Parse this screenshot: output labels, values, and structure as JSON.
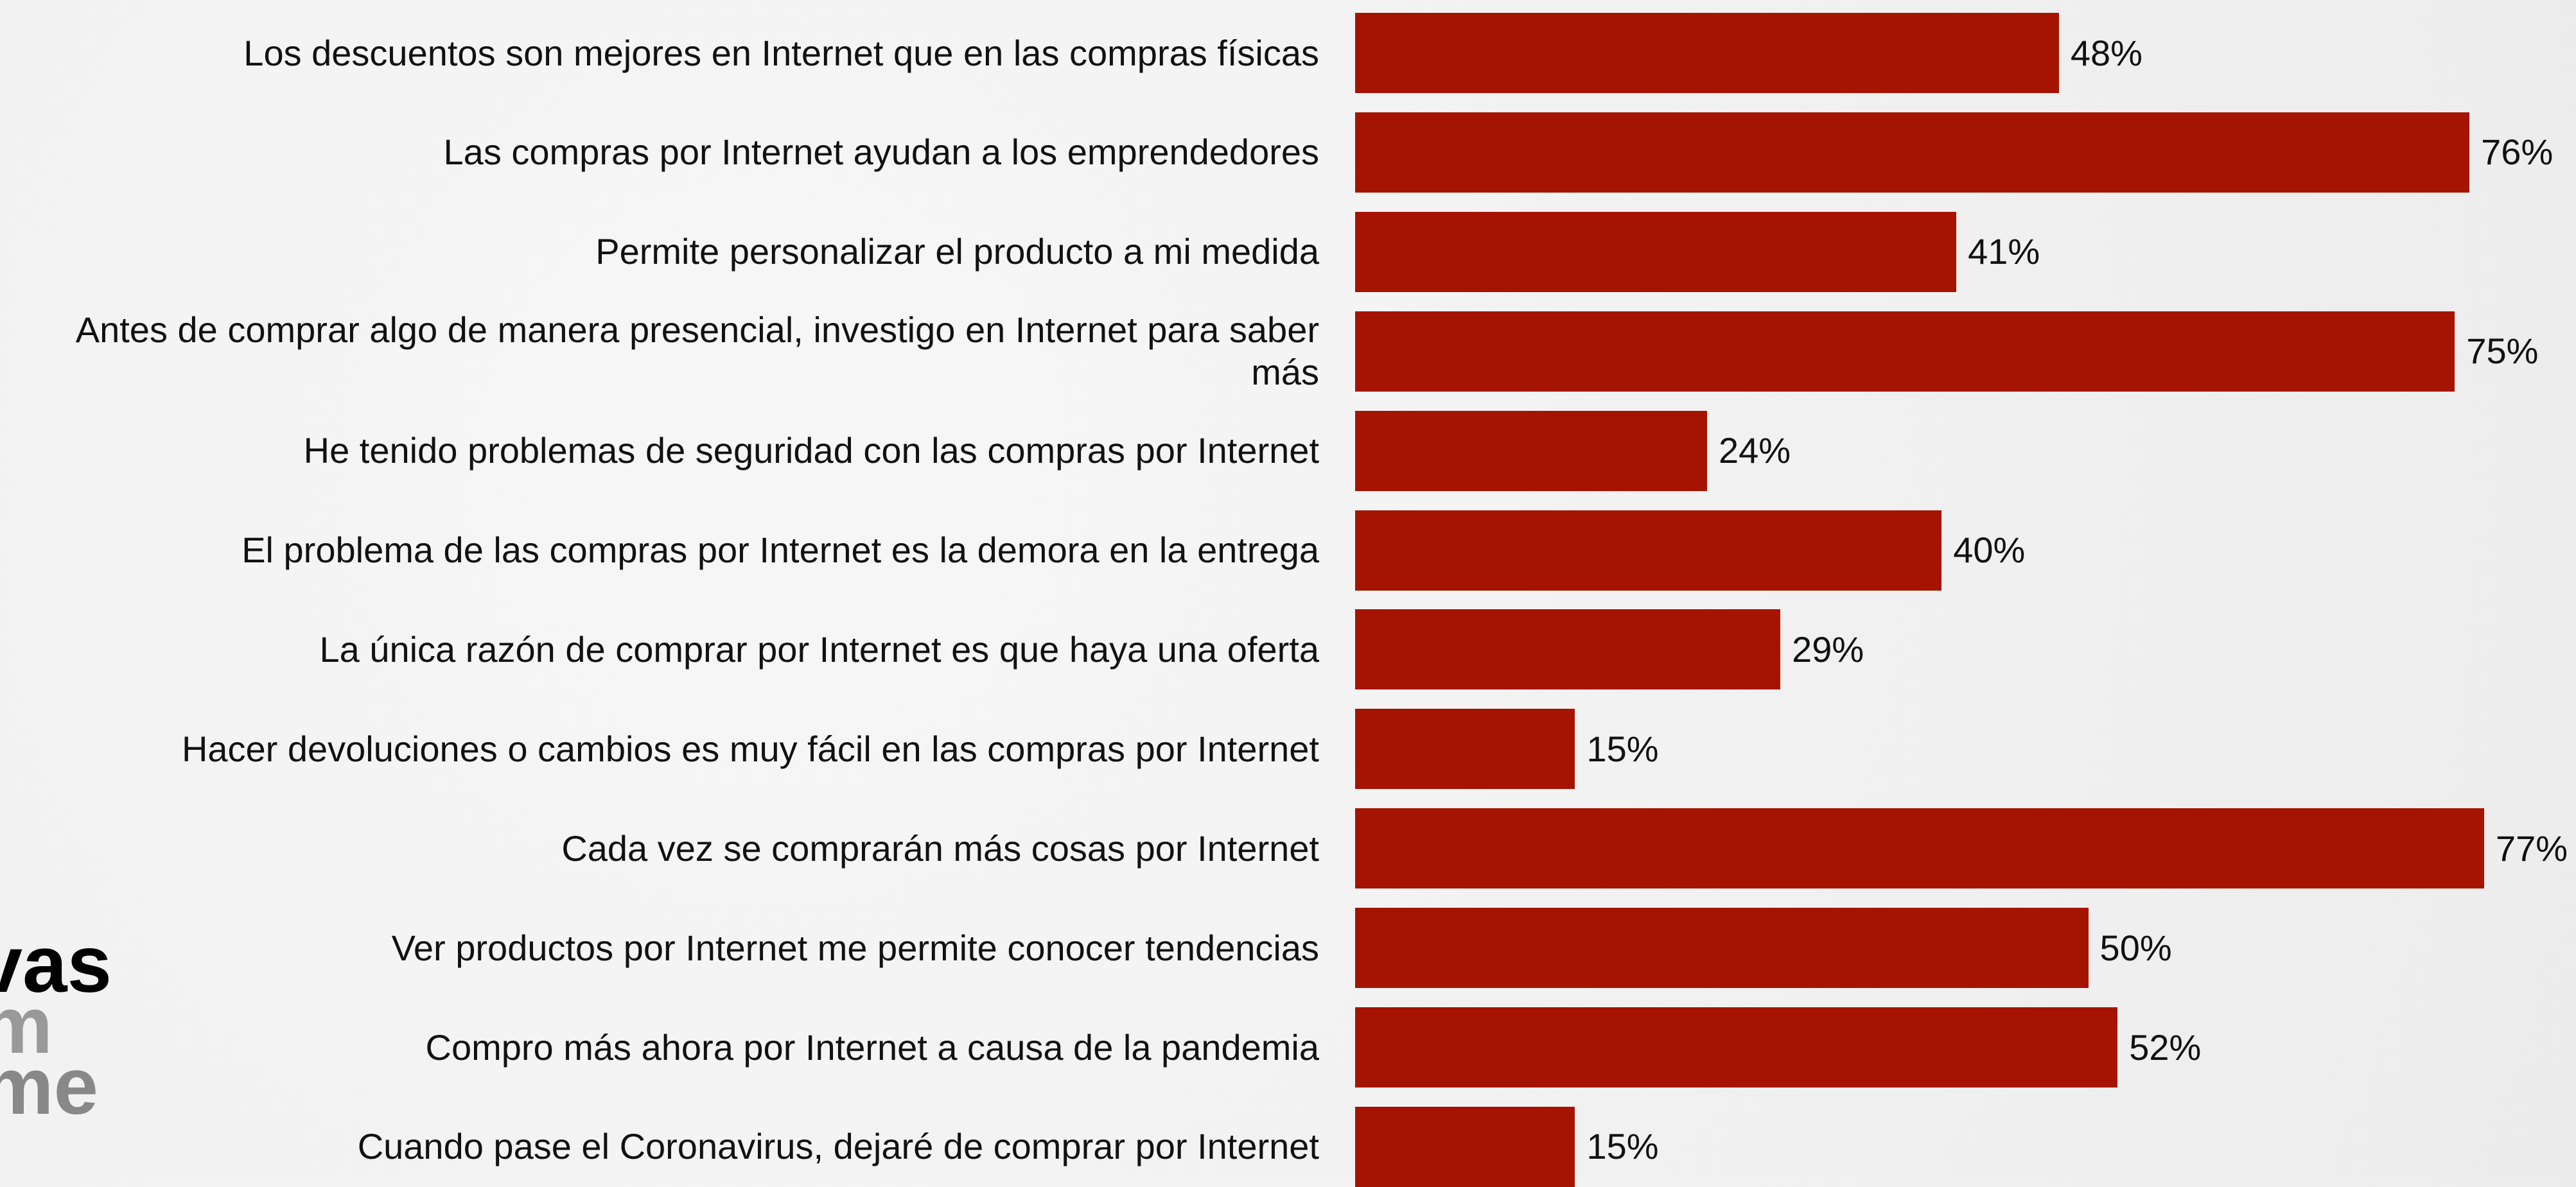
{
  "chart_data": {
    "type": "barh",
    "categories": [
      "Los descuentos son mejores en Internet que en las compras físicas",
      "Las compras por Internet ayudan a los emprendedores",
      "Permite personalizar el producto a mi medida",
      "Antes de comprar algo de manera presencial, investigo en Internet para saber más",
      "He tenido problemas de seguridad con las compras por Internet",
      "El problema de las compras por Internet es la demora en la entrega",
      "La única razón de comprar por Internet es que haya una oferta",
      "Hacer devoluciones o cambios es muy fácil en las compras por Internet",
      "Cada vez se comprarán más cosas por Internet",
      "Ver productos por Internet me permite conocer tendencias",
      "Compro más ahora por Internet a causa de la pandemia",
      "Cuando pase el Coronavirus, dejaré de comprar por Internet"
    ],
    "values": [
      48,
      76,
      41,
      75,
      24,
      40,
      29,
      15,
      77,
      50,
      52,
      15
    ],
    "value_labels": [
      "48%",
      "76%",
      "41%",
      "75%",
      "24%",
      "40%",
      "29%",
      "15%",
      "77%",
      "50%",
      "52%",
      "15%"
    ],
    "color": "#a51400"
  },
  "logo": [
    "vas",
    "m",
    "me"
  ]
}
